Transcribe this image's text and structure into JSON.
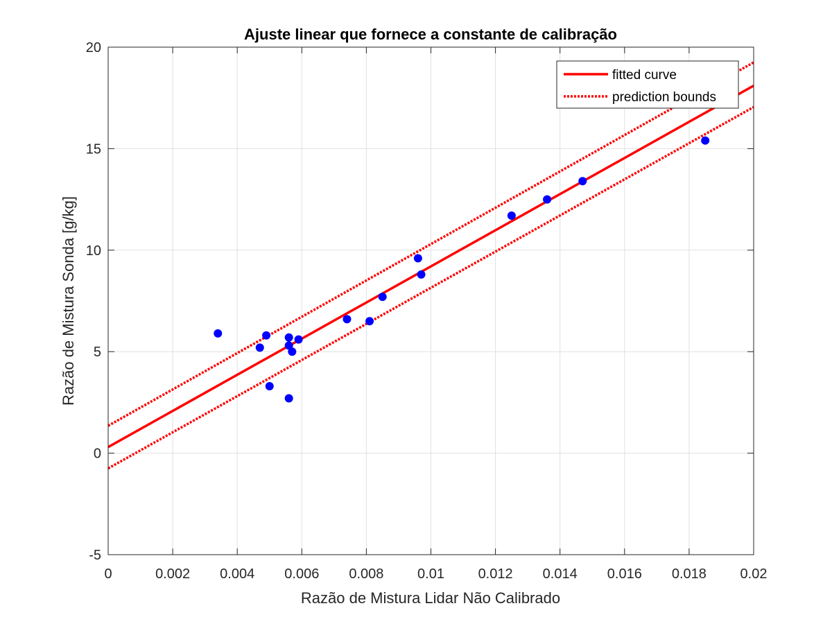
{
  "chart_data": {
    "type": "scatter",
    "title": "Ajuste linear que fornece a constante de calibração",
    "xlabel": "Razão de Mistura Lidar Não Calibrado",
    "ylabel": "Razão de Mistura Sonda [g/kg]",
    "xlim": [
      0,
      0.02
    ],
    "ylim": [
      -5,
      20
    ],
    "xticks": [
      0,
      0.002,
      0.004,
      0.006,
      0.008,
      0.01,
      0.012,
      0.014,
      0.016,
      0.018,
      0.02
    ],
    "xtick_labels": [
      "0",
      "0.002",
      "0.004",
      "0.006",
      "0.008",
      "0.01",
      "0.012",
      "0.014",
      "0.016",
      "0.018",
      "0.02"
    ],
    "yticks": [
      -5,
      0,
      5,
      10,
      15,
      20
    ],
    "ytick_labels": [
      "-5",
      "0",
      "5",
      "10",
      "15",
      "20"
    ],
    "grid": true,
    "legend_position": "top-right",
    "colors": {
      "points": "#0000ff",
      "fit": "#ff0000",
      "bounds": "#ff0000",
      "grid": "#e0e0e0",
      "axes": "#262626"
    },
    "data_points": {
      "x": [
        0.0034,
        0.0047,
        0.0049,
        0.005,
        0.0056,
        0.0056,
        0.0056,
        0.0057,
        0.0059,
        0.0074,
        0.0081,
        0.0085,
        0.0096,
        0.0097,
        0.0125,
        0.0136,
        0.0147,
        0.0185
      ],
      "y": [
        5.9,
        5.2,
        5.8,
        3.3,
        2.7,
        5.7,
        5.3,
        5.0,
        5.6,
        6.6,
        6.5,
        7.7,
        9.6,
        8.8,
        11.7,
        12.5,
        13.4,
        15.4
      ]
    },
    "series": [
      {
        "name": "fitted curve",
        "style": "solid",
        "x": [
          0,
          0.02
        ],
        "y": [
          0.3,
          18.1
        ]
      },
      {
        "name": "prediction bounds",
        "style": "dotted",
        "x": [
          0,
          0.02
        ],
        "y": [
          1.35,
          19.25
        ]
      },
      {
        "style": "dotted",
        "x": [
          0,
          0.02
        ],
        "y": [
          -0.75,
          17.05
        ]
      }
    ]
  }
}
